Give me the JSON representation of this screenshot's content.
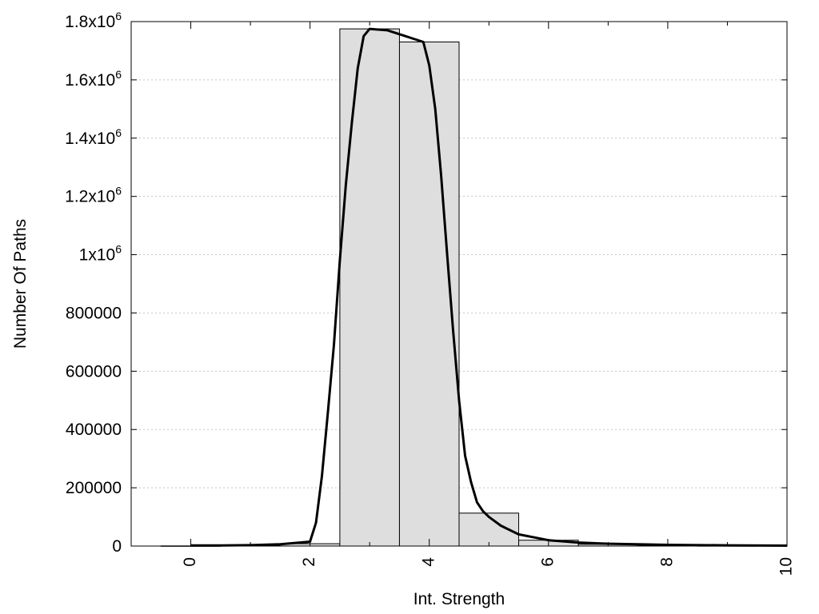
{
  "chart_data": {
    "type": "bar",
    "xlabel": "Int. Strength",
    "ylabel": "Number Of Paths",
    "xlim": [
      -1,
      10
    ],
    "ylim": [
      0,
      1800000
    ],
    "grid": true,
    "bar_width": 1,
    "x_ticks": [
      {
        "value": 0,
        "label": "0"
      },
      {
        "value": 2,
        "label": "2"
      },
      {
        "value": 4,
        "label": "4"
      },
      {
        "value": 6,
        "label": "6"
      },
      {
        "value": 8,
        "label": "8"
      },
      {
        "value": 10,
        "label": "10"
      }
    ],
    "y_ticks": [
      {
        "value": 0,
        "base": "0",
        "exp": ""
      },
      {
        "value": 200000,
        "base": "200000",
        "exp": ""
      },
      {
        "value": 400000,
        "base": "400000",
        "exp": ""
      },
      {
        "value": 600000,
        "base": "600000",
        "exp": ""
      },
      {
        "value": 800000,
        "base": "800000",
        "exp": ""
      },
      {
        "value": 1000000,
        "base": "1x10",
        "exp": "6"
      },
      {
        "value": 1200000,
        "base": "1.2x10",
        "exp": "6"
      },
      {
        "value": 1400000,
        "base": "1.4x10",
        "exp": "6"
      },
      {
        "value": 1600000,
        "base": "1.6x10",
        "exp": "6"
      },
      {
        "value": 1800000,
        "base": "1.8x10",
        "exp": "6"
      }
    ],
    "bars": [
      {
        "x": 0,
        "value": 500
      },
      {
        "x": 1,
        "value": 1500
      },
      {
        "x": 2,
        "value": 8000
      },
      {
        "x": 3,
        "value": 1775000
      },
      {
        "x": 4,
        "value": 1730000
      },
      {
        "x": 5,
        "value": 113000
      },
      {
        "x": 6,
        "value": 20000
      },
      {
        "x": 7,
        "value": 6000
      },
      {
        "x": 8,
        "value": 3000
      },
      {
        "x": 9,
        "value": 1000
      }
    ],
    "curve": {
      "x": [
        0,
        0.5,
        1,
        1.5,
        2,
        2.1,
        2.2,
        2.3,
        2.4,
        2.5,
        2.6,
        2.7,
        2.8,
        2.9,
        3.0,
        3.1,
        3.3,
        3.6,
        3.9,
        4.0,
        4.1,
        4.2,
        4.3,
        4.4,
        4.5,
        4.6,
        4.7,
        4.8,
        4.9,
        5.0,
        5.2,
        5.5,
        6.0,
        6.5,
        7.0,
        8.0,
        9.0,
        10.0
      ],
      "y": [
        2000,
        2000,
        3000,
        6000,
        15000,
        80000,
        240000,
        460000,
        690000,
        980000,
        1240000,
        1450000,
        1640000,
        1750000,
        1775000,
        1773000,
        1770000,
        1750000,
        1730000,
        1650000,
        1500000,
        1270000,
        1000000,
        740000,
        500000,
        310000,
        220000,
        150000,
        120000,
        100000,
        70000,
        40000,
        20000,
        12000,
        8000,
        4000,
        2500,
        1500
      ]
    }
  }
}
